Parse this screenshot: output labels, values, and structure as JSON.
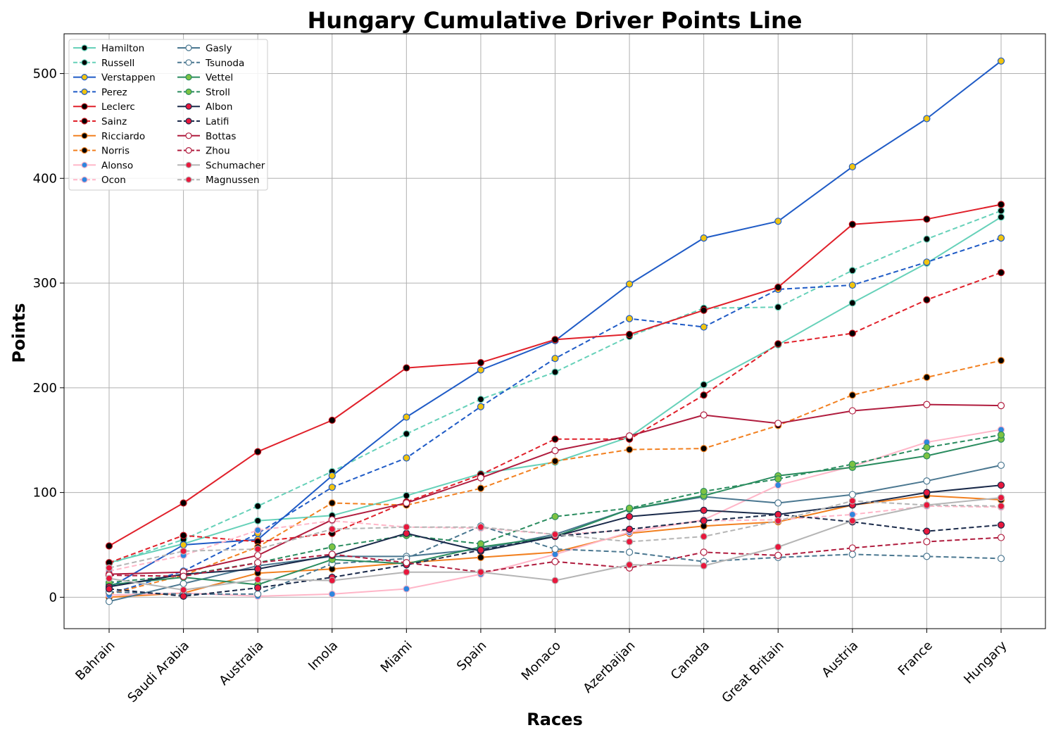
{
  "chart_data": {
    "type": "line",
    "title": "Hungary Cumulative Driver Points Line",
    "xlabel": "Races",
    "ylabel": "Points",
    "categories": [
      "Bahrain",
      "Saudi Arabia",
      "Australia",
      "Imola",
      "Miami",
      "Spain",
      "Monaco",
      "Azerbaijan",
      "Canada",
      "Great Britain",
      "Austria",
      "France",
      "Hungary"
    ],
    "ylim": [
      -30,
      538
    ],
    "yticks": [
      0,
      100,
      200,
      300,
      400,
      500
    ],
    "grid": true,
    "legend": {
      "position": "top-left",
      "columns": 2
    },
    "series": [
      {
        "name": "Hamilton",
        "color": "#66d1b9",
        "dash": false,
        "marker_fill": "#000000",
        "values": [
          33,
          51,
          73,
          78,
          97,
          118,
          129,
          153,
          203,
          241,
          281,
          319,
          363
        ]
      },
      {
        "name": "Russell",
        "color": "#66d1b9",
        "dash": true,
        "marker_fill": "#000000",
        "values": [
          32,
          55,
          87,
          120,
          156,
          189,
          215,
          249,
          276,
          277,
          312,
          342,
          369
        ]
      },
      {
        "name": "Verstappen",
        "color": "#1f5bc6",
        "dash": false,
        "marker_fill": "#f1c40f",
        "values": [
          9,
          50,
          55,
          116,
          172,
          217,
          245,
          299,
          343,
          359,
          411,
          457,
          512
        ]
      },
      {
        "name": "Perez",
        "color": "#1f5bc6",
        "dash": true,
        "marker_fill": "#f1c40f",
        "values": [
          3,
          25,
          61,
          105,
          133,
          182,
          228,
          266,
          258,
          294,
          298,
          320,
          343
        ]
      },
      {
        "name": "Leclerc",
        "color": "#e0202a",
        "dash": false,
        "marker_fill": "#000000",
        "marker_edge": "#c0101a",
        "values": [
          49,
          90,
          139,
          169,
          219,
          224,
          246,
          251,
          274,
          296,
          356,
          361,
          375
        ]
      },
      {
        "name": "Sainz",
        "color": "#e0202a",
        "dash": true,
        "marker_fill": "#000000",
        "marker_edge": "#c0101a",
        "values": [
          33,
          59,
          53,
          61,
          91,
          117,
          151,
          151,
          193,
          242,
          252,
          284,
          310
        ]
      },
      {
        "name": "Ricciardo",
        "color": "#f28020",
        "dash": false,
        "marker_fill": "#000000",
        "values": [
          0,
          4,
          23,
          27,
          33,
          38,
          43,
          61,
          68,
          72,
          88,
          97,
          93
        ]
      },
      {
        "name": "Norris",
        "color": "#f28020",
        "dash": true,
        "marker_fill": "#000000",
        "values": [
          3,
          21,
          48,
          90,
          88,
          104,
          130,
          141,
          142,
          164,
          193,
          210,
          226
        ]
      },
      {
        "name": "Alonso",
        "color": "#ffb6c8",
        "dash": false,
        "marker_fill": "#2e86de",
        "values": [
          2,
          4,
          1,
          3,
          8,
          22,
          41,
          62,
          74,
          107,
          125,
          148,
          160
        ]
      },
      {
        "name": "Ocon",
        "color": "#ffb6c8",
        "dash": true,
        "marker_fill": "#2e86de",
        "values": [
          25,
          40,
          64,
          73,
          67,
          66,
          60,
          64,
          73,
          74,
          79,
          87,
          86
        ]
      },
      {
        "name": "Gasly",
        "color": "#4a7790",
        "dash": false,
        "marker_fill": "#ffffff",
        "values": [
          -4,
          13,
          30,
          39,
          39,
          46,
          60,
          84,
          96,
          90,
          98,
          111,
          126
        ]
      },
      {
        "name": "Tsunoda",
        "color": "#4a7790",
        "dash": true,
        "marker_fill": "#ffffff",
        "values": [
          5,
          3,
          3,
          32,
          37,
          68,
          46,
          43,
          34,
          38,
          41,
          39,
          37
        ]
      },
      {
        "name": "Vettel",
        "color": "#2a8c5f",
        "dash": false,
        "marker_fill": "#7dc242",
        "values": [
          12,
          19,
          12,
          36,
          32,
          48,
          58,
          84,
          97,
          116,
          124,
          135,
          151
        ]
      },
      {
        "name": "Stroll",
        "color": "#2a8c5f",
        "dash": true,
        "marker_fill": "#7dc242",
        "values": [
          14,
          21,
          33,
          48,
          59,
          51,
          77,
          85,
          101,
          113,
          127,
          143,
          155
        ]
      },
      {
        "name": "Albon",
        "color": "#1a2a4a",
        "dash": false,
        "marker_fill": "#e8173c",
        "values": [
          10,
          22,
          27,
          40,
          61,
          44,
          58,
          77,
          83,
          79,
          88,
          100,
          107
        ]
      },
      {
        "name": "Latifi",
        "color": "#1a2a4a",
        "dash": true,
        "marker_fill": "#e8173c",
        "values": [
          8,
          1,
          9,
          19,
          31,
          45,
          58,
          65,
          73,
          79,
          72,
          63,
          69
        ]
      },
      {
        "name": "Bottas",
        "color": "#b01c3e",
        "dash": false,
        "marker_fill": "#ffffff",
        "values": [
          22,
          24,
          40,
          74,
          90,
          114,
          140,
          154,
          174,
          166,
          178,
          184,
          183
        ]
      },
      {
        "name": "Zhou",
        "color": "#b01c3e",
        "dash": true,
        "marker_fill": "#ffffff",
        "values": [
          21,
          20,
          33,
          41,
          33,
          24,
          34,
          28,
          43,
          40,
          47,
          53,
          57
        ]
      },
      {
        "name": "Schumacher",
        "color": "#b5b5b5",
        "dash": false,
        "marker_fill": "#e8173c",
        "values": [
          18,
          7,
          17,
          16,
          24,
          24,
          16,
          31,
          30,
          48,
          73,
          88,
          95
        ]
      },
      {
        "name": "Magnussen",
        "color": "#b5b5b5",
        "dash": true,
        "marker_fill": "#e8173c",
        "values": [
          28,
          44,
          46,
          65,
          67,
          67,
          60,
          53,
          58,
          73,
          92,
          88,
          87
        ]
      }
    ]
  }
}
